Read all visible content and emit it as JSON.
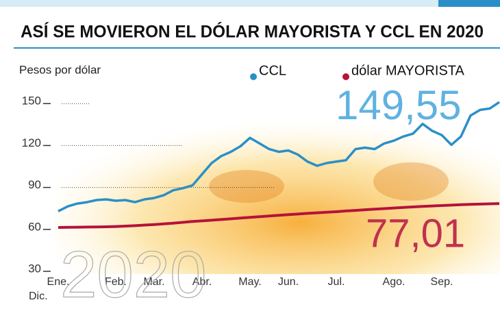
{
  "chart_data": {
    "type": "line",
    "title": "ASÍ SE MOVIERON EL DÓLAR MAYORISTA Y CCL EN 2020",
    "y_label": "Pesos por dólar",
    "categories": [
      "Ene.",
      null,
      null,
      null,
      null,
      null,
      "Feb.",
      null,
      null,
      null,
      "Mar.",
      null,
      null,
      null,
      null,
      "Abr.",
      null,
      null,
      null,
      null,
      "May.",
      null,
      null,
      null,
      "Jun.",
      null,
      null,
      null,
      null,
      "Jul.",
      null,
      null,
      null,
      null,
      null,
      "Ago.",
      null,
      null,
      null,
      null,
      "Sep.",
      null,
      null,
      null,
      null,
      null,
      null
    ],
    "series": [
      {
        "name": "CCL",
        "color": "#2a8fc7",
        "values": [
          71.5,
          75,
          77,
          78,
          79.5,
          80,
          79,
          79.5,
          78,
          80,
          81,
          83,
          86.5,
          88,
          90,
          98,
          106,
          111,
          114,
          118,
          124,
          120,
          116,
          114,
          115,
          112,
          107,
          104,
          106,
          107,
          108,
          116,
          117,
          116,
          120,
          122,
          125,
          127,
          134,
          129,
          126,
          119,
          125,
          140,
          144,
          145,
          149.55
        ]
      },
      {
        "name": "dólar MAYORISTA",
        "color": "#b5123a",
        "values": [
          59.9,
          60,
          60.1,
          60.2,
          60.3,
          60.4,
          60.6,
          60.9,
          61.2,
          61.6,
          62,
          62.5,
          63,
          63.6,
          64.2,
          64.6,
          65.1,
          65.6,
          66.1,
          66.6,
          67.1,
          67.6,
          68.1,
          68.6,
          69.1,
          69.5,
          70,
          70.4,
          70.8,
          71.2,
          71.7,
          72.1,
          72.6,
          73,
          73.4,
          73.8,
          74.2,
          74.6,
          75,
          75.3,
          75.6,
          75.9,
          76.2,
          76.4,
          76.6,
          76.8,
          77.01
        ]
      }
    ],
    "ylim": [
      30,
      155
    ],
    "yticks": [
      30,
      60,
      90,
      120,
      150
    ],
    "grid": true,
    "annotations": [
      "149,55",
      "77,01",
      "2020",
      "Dic."
    ]
  }
}
